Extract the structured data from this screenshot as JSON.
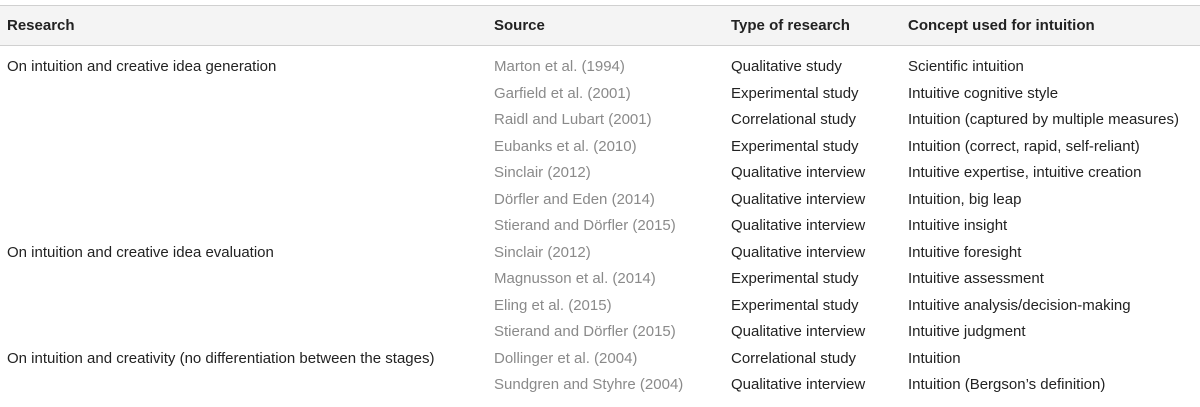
{
  "table": {
    "headers": [
      "Research",
      "Source",
      "Type of research",
      "Concept used for intuition"
    ],
    "rows": [
      {
        "research": "On intuition and creative idea generation",
        "source": "Marton et al. (1994)",
        "type": "Qualitative study",
        "concept": "Scientific intuition"
      },
      {
        "research": "",
        "source": "Garfield et al. (2001)",
        "type": "Experimental study",
        "concept": "Intuitive cognitive style"
      },
      {
        "research": "",
        "source": "Raidl and Lubart (2001)",
        "type": "Correlational study",
        "concept": "Intuition (captured by multiple measures)"
      },
      {
        "research": "",
        "source": "Eubanks et al. (2010)",
        "type": "Experimental study",
        "concept": "Intuition (correct, rapid, self-reliant)"
      },
      {
        "research": "",
        "source": "Sinclair (2012)",
        "type": "Qualitative interview",
        "concept": "Intuitive expertise, intuitive creation"
      },
      {
        "research": "",
        "source": "Dörfler and Eden (2014)",
        "type": "Qualitative interview",
        "concept": "Intuition, big leap"
      },
      {
        "research": "",
        "source": "Stierand and Dörfler (2015)",
        "type": "Qualitative interview",
        "concept": "Intuitive insight"
      },
      {
        "research": "On intuition and creative idea evaluation",
        "source": "Sinclair (2012)",
        "type": "Qualitative interview",
        "concept": "Intuitive foresight"
      },
      {
        "research": "",
        "source": "Magnusson et al. (2014)",
        "type": "Experimental study",
        "concept": "Intuitive assessment"
      },
      {
        "research": "",
        "source": "Eling et al. (2015)",
        "type": "Experimental study",
        "concept": "Intuitive analysis/decision-making"
      },
      {
        "research": "",
        "source": "Stierand and Dörfler (2015)",
        "type": "Qualitative interview",
        "concept": "Intuitive judgment"
      },
      {
        "research": "On intuition and creativity (no differentiation between the stages)",
        "source": "Dollinger et al. (2004)",
        "type": "Correlational study",
        "concept": "Intuition"
      },
      {
        "research": "",
        "source": "Sundgren and Styhre (2004)",
        "type": "Qualitative interview",
        "concept": "Intuition (Bergson’s definition)"
      }
    ]
  }
}
